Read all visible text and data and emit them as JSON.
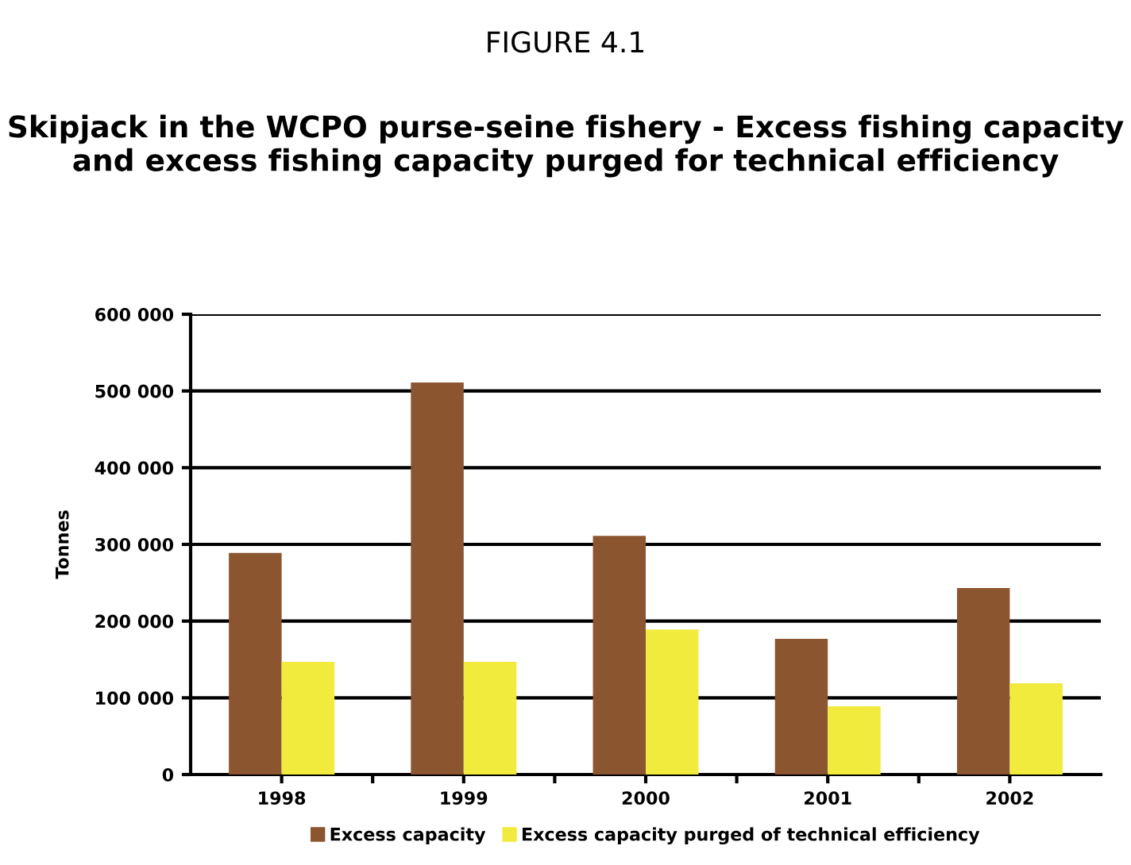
{
  "chart_data": {
    "type": "bar",
    "title": "FIGURE 4.1",
    "subtitle": "Skipjack in the WCPO purse-seine fishery - Excess fishing capacity and excess fishing capacity purged for technical efficiency",
    "ylabel": "Tonnes",
    "categories": [
      "1998",
      "1999",
      "2000",
      "2001",
      "2002"
    ],
    "series": [
      {
        "name": "Excess capacity",
        "color": "#8b5530",
        "values": [
          289000,
          511000,
          311000,
          177000,
          243000
        ]
      },
      {
        "name": "Excess capacity purged of technical efficiency",
        "color": "#f0eb3c",
        "values": [
          147000,
          147000,
          189000,
          89000,
          119000
        ]
      }
    ],
    "ylim": [
      0,
      600000
    ],
    "yticks": [
      {
        "value": 0,
        "label": "0"
      },
      {
        "value": 100000,
        "label": "100 000"
      },
      {
        "value": 200000,
        "label": "200 000"
      },
      {
        "value": 300000,
        "label": "300 000"
      },
      {
        "value": 400000,
        "label": "400 000"
      },
      {
        "value": 500000,
        "label": "500 000"
      },
      {
        "value": 600000,
        "label": "600 000"
      }
    ],
    "grid": "y",
    "legend": "bottom"
  }
}
